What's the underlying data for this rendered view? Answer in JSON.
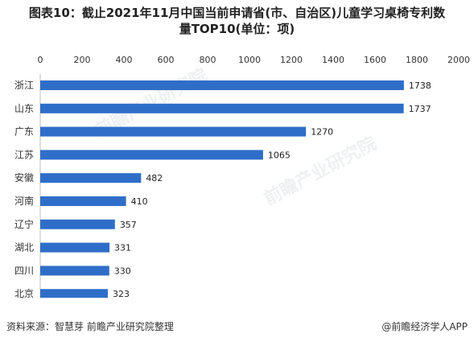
{
  "title": {
    "line1": "图表10：截止2021年11月中国当前申请省(市、自治区)儿童学习桌椅专利数",
    "line2": "量TOP10(单位：项)"
  },
  "chart_data": {
    "type": "bar",
    "orientation": "horizontal",
    "categories": [
      "浙江",
      "山东",
      "广东",
      "江苏",
      "安徽",
      "河南",
      "辽宁",
      "湖北",
      "四川",
      "北京"
    ],
    "values": [
      1738,
      1737,
      1270,
      1065,
      482,
      410,
      357,
      331,
      330,
      323
    ],
    "xticks": [
      0,
      200,
      400,
      600,
      800,
      1000,
      1200,
      1400,
      1600,
      1800,
      2000
    ],
    "xlim": [
      0,
      2000
    ],
    "xaxis_position": "top",
    "grid": false,
    "bar_color": "#2f6ec8",
    "data_labels": true
  },
  "footer": {
    "source": "资料来源：智慧芽 前瞻产业研究院整理",
    "brand": "@前瞻经济学人APP"
  },
  "watermark": {
    "text": "前瞻产业研究院"
  }
}
